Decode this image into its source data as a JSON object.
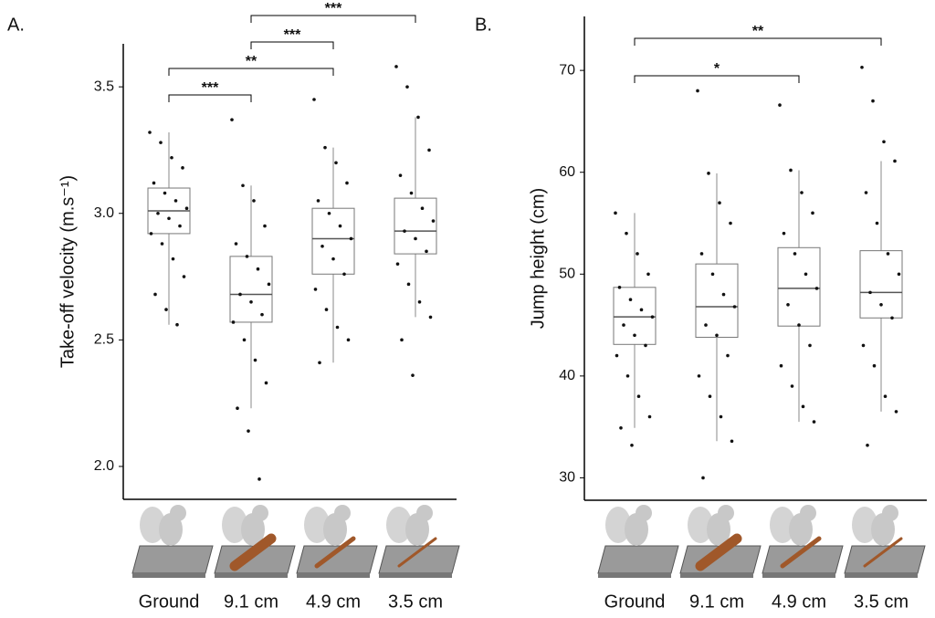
{
  "chart_data": [
    {
      "type": "box",
      "panel_label": "A.",
      "y_label": "Take-off velocity (m.s⁻¹)",
      "categories": [
        "Ground",
        "9.1 cm",
        "4.9 cm",
        "3.5 cm"
      ],
      "ylim": [
        1.87,
        3.67
      ],
      "yticks": [
        {
          "value": 2,
          "label": "2.0"
        },
        2.5,
        {
          "value": 3,
          "label": "3.0"
        },
        3.5
      ],
      "boxes": [
        {
          "min": 2.56,
          "q1": 2.92,
          "median": 3.01,
          "q3": 3.1,
          "max": 3.32
        },
        {
          "min": 2.23,
          "q1": 2.57,
          "median": 2.68,
          "q3": 2.83,
          "max": 3.11
        },
        {
          "min": 2.41,
          "q1": 2.76,
          "median": 2.9,
          "q3": 3.02,
          "max": 3.26
        },
        {
          "min": 2.59,
          "q1": 2.84,
          "median": 2.93,
          "q3": 3.06,
          "max": 3.38
        }
      ],
      "points": [
        [
          3.32,
          3.28,
          3.22,
          3.18,
          3.12,
          3.08,
          3.05,
          3.02,
          3.0,
          2.98,
          2.95,
          2.92,
          2.88,
          2.82,
          2.75,
          2.68,
          2.62,
          2.56
        ],
        [
          3.37,
          3.11,
          3.05,
          2.95,
          2.88,
          2.83,
          2.78,
          2.72,
          2.68,
          2.65,
          2.6,
          2.57,
          2.5,
          2.42,
          2.33,
          2.23,
          2.14,
          1.95
        ],
        [
          3.45,
          3.26,
          3.2,
          3.12,
          3.05,
          3.0,
          2.95,
          2.9,
          2.87,
          2.82,
          2.76,
          2.7,
          2.62,
          2.55,
          2.5,
          2.41
        ],
        [
          3.58,
          3.5,
          3.38,
          3.25,
          3.15,
          3.08,
          3.02,
          2.97,
          2.93,
          2.9,
          2.85,
          2.8,
          2.72,
          2.65,
          2.59,
          2.5,
          2.36
        ]
      ],
      "comparisons": [
        {
          "from": "Ground",
          "to": "9.1 cm",
          "label": "***"
        },
        {
          "from": "Ground",
          "to": "4.9 cm",
          "label": "**"
        },
        {
          "from": "9.1 cm",
          "to": "4.9 cm",
          "label": "***"
        },
        {
          "from": "9.1 cm",
          "to": "3.5 cm",
          "label": "***"
        }
      ]
    },
    {
      "type": "box",
      "panel_label": "B.",
      "y_label": "Jump height (cm)",
      "categories": [
        "Ground",
        "9.1 cm",
        "4.9 cm",
        "3.5 cm"
      ],
      "ylim": [
        27.8,
        75.3
      ],
      "yticks": [
        30,
        40,
        50,
        60,
        70
      ],
      "boxes": [
        {
          "min": 34.9,
          "q1": 43.1,
          "median": 45.8,
          "q3": 48.7,
          "max": 56.0
        },
        {
          "min": 33.6,
          "q1": 43.8,
          "median": 46.8,
          "q3": 51.0,
          "max": 59.9
        },
        {
          "min": 35.5,
          "q1": 44.9,
          "median": 48.6,
          "q3": 52.6,
          "max": 60.2
        },
        {
          "min": 36.5,
          "q1": 45.7,
          "median": 48.2,
          "q3": 52.3,
          "max": 61.1
        }
      ],
      "points": [
        [
          56,
          54,
          52,
          50,
          48.7,
          47.5,
          46.5,
          45.8,
          45,
          44,
          43,
          42,
          40,
          38,
          36,
          34.9,
          33.2
        ],
        [
          68,
          59.9,
          57,
          55,
          52,
          50,
          48,
          46.8,
          45,
          44,
          42,
          40,
          38,
          36,
          33.6,
          30
        ],
        [
          66.6,
          60.2,
          58,
          56,
          54,
          52,
          50,
          48.6,
          47,
          45,
          43,
          41,
          39,
          37,
          35.5
        ],
        [
          70.3,
          67,
          63,
          61.1,
          58,
          55,
          52,
          50,
          48.2,
          47,
          45.7,
          43,
          41,
          38,
          36.5,
          33.2
        ]
      ],
      "comparisons": [
        {
          "from": "Ground",
          "to": "4.9 cm",
          "label": "*"
        },
        {
          "from": "Ground",
          "to": "3.5 cm",
          "label": "**"
        }
      ]
    }
  ]
}
